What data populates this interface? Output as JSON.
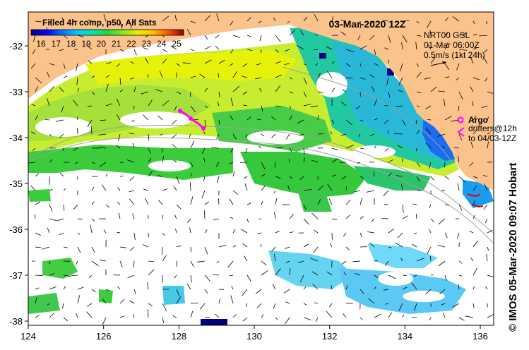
{
  "colorbar": {
    "title": "Filled 4h comp, p50, All Sats",
    "ticks": [
      "16",
      "17",
      "18",
      "19",
      "20",
      "21",
      "22",
      "23",
      "24",
      "25"
    ],
    "colors": [
      "#00007a",
      "#0000ff",
      "#0060ff",
      "#00c0ff",
      "#00e8c0",
      "#00d840",
      "#40e040",
      "#c0f000",
      "#ffe000",
      "#ff8000",
      "#e00000",
      "#900000"
    ]
  },
  "date_label": "03-Mar-2020 12Z",
  "info": {
    "product": "NRT00 GSL",
    "time": "01-Mar 06:00Z",
    "scale": "0.5m/s (1kt 24h)"
  },
  "argo": {
    "label": "Argo",
    "drifters_line1": "drifters@12h",
    "drifters_line2": "to 04/03-12Z",
    "argo_color": "#ff00ff",
    "drifter_color": "#ff00ff"
  },
  "credit": "© IMOS 05-Mar-2020 09:07 Hobart",
  "axes": {
    "lon_ticks": [
      "124",
      "126",
      "128",
      "130",
      "132",
      "134",
      "136"
    ],
    "lat_ticks": [
      "-32",
      "-33",
      "-34",
      "-35",
      "-36",
      "-37",
      "-38"
    ]
  },
  "colors": {
    "land": "#fcc28c",
    "ocean_blank": "#ffffff",
    "vectors": "#000000",
    "bathymetry": "#a0a0a0"
  }
}
